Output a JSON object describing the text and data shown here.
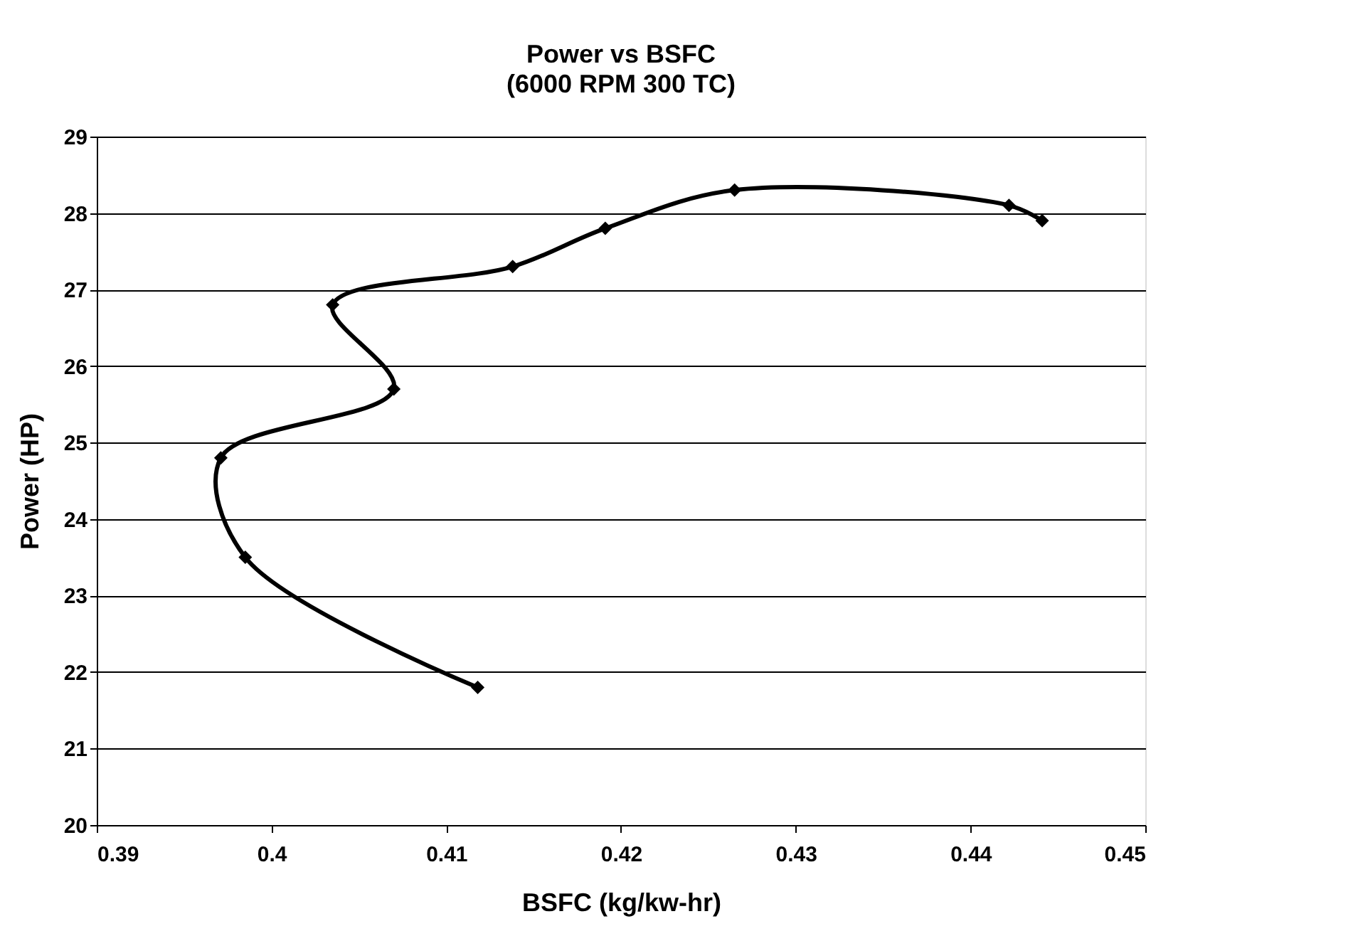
{
  "chart_data": {
    "type": "line",
    "title": "Power vs BSFC",
    "subtitle": "(6000 RPM 300 TC)",
    "xlabel": "BSFC (kg/kw-hr)",
    "ylabel": "Power (HP)",
    "x": [
      0.4118,
      0.3985,
      0.3971,
      0.407,
      0.4035,
      0.4138,
      0.4191,
      0.4265,
      0.4422,
      0.4441
    ],
    "series": [
      {
        "color": "#000000",
        "values": [
          21.8,
          23.5,
          24.8,
          25.7,
          26.8,
          27.3,
          27.8,
          28.3,
          28.1,
          27.9
        ]
      }
    ],
    "xlim": [
      0.39,
      0.45
    ],
    "xticks": [
      0.39,
      0.4,
      0.41,
      0.42,
      0.43,
      0.44,
      0.45
    ],
    "ylim": [
      20,
      29
    ],
    "yticks": [
      20,
      21,
      22,
      23,
      24,
      25,
      26,
      27,
      28,
      29
    ],
    "grid": "y",
    "marker": "diamond",
    "line_style": "solid"
  }
}
